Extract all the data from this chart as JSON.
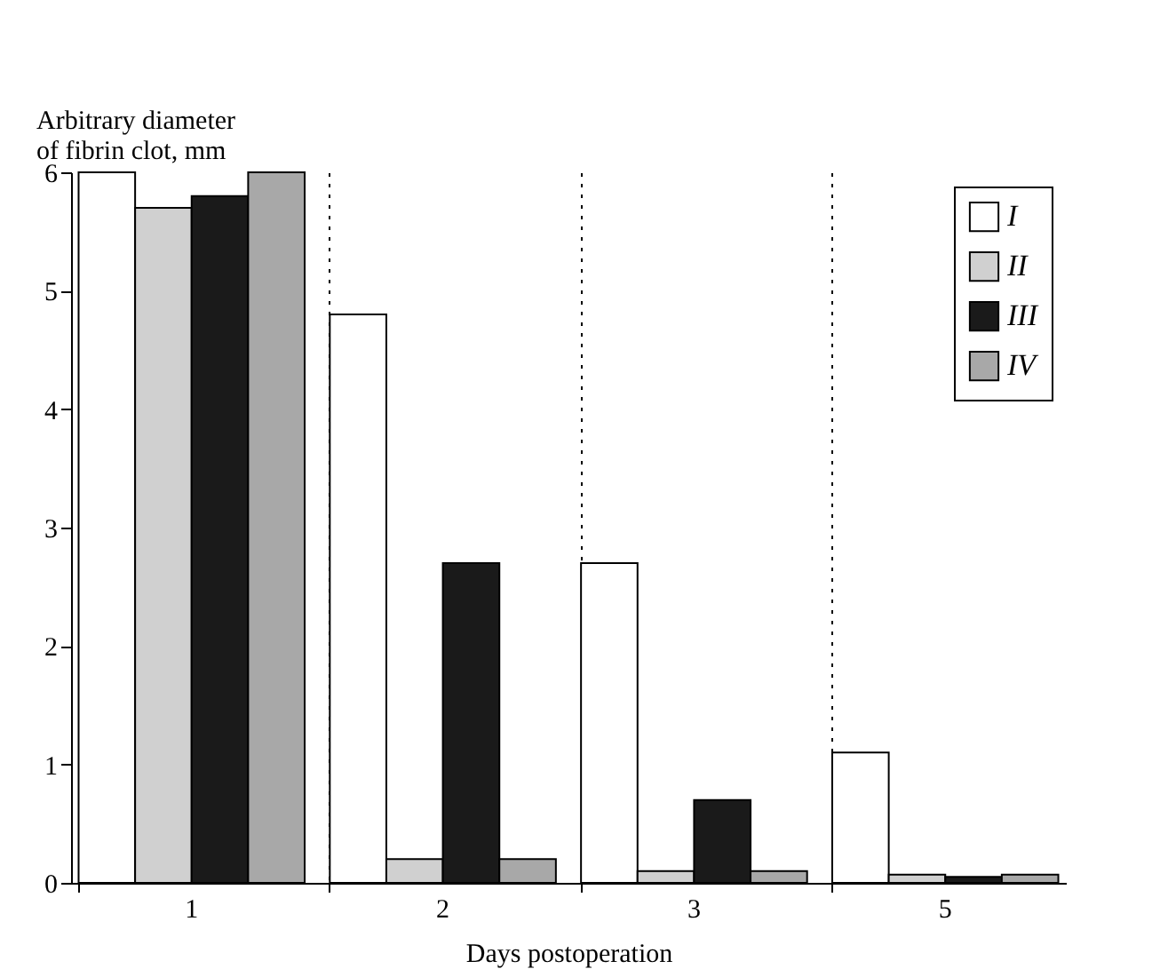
{
  "chart_data": {
    "type": "bar",
    "ylabel": "Arbitrary diameter\nof fibrin clot, mm",
    "xlabel": "Days postoperation",
    "categories": [
      "1",
      "2",
      "3",
      "5"
    ],
    "series": [
      {
        "name": "I",
        "color": "#ffffff",
        "values": [
          6,
          4.8,
          2.7,
          1.1
        ]
      },
      {
        "name": "II",
        "color": "#d0d0d0",
        "values": [
          5.7,
          0.2,
          0.1,
          0.07
        ]
      },
      {
        "name": "III",
        "color": "#1a1a1a",
        "values": [
          5.8,
          2.7,
          0.7,
          0.05
        ]
      },
      {
        "name": "IV",
        "color": "#a8a8a8",
        "values": [
          6,
          0.2,
          0.1,
          0.07
        ]
      }
    ],
    "ylim": [
      0,
      6
    ],
    "yticks": [
      0,
      1,
      2,
      3,
      4,
      5,
      6
    ],
    "grid": "x",
    "legend": "top right"
  }
}
